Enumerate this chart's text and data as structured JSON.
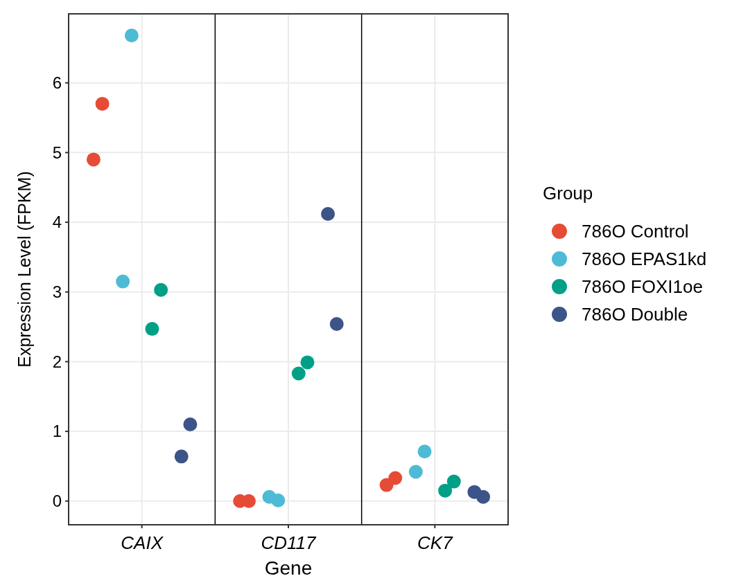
{
  "chart_data": {
    "type": "scatter",
    "xlabel": "Gene",
    "ylabel": "Expression Level (FPKM)",
    "legend_title": "Group",
    "categories": [
      "CAIX",
      "CD117",
      "CK7"
    ],
    "ylim": [
      -0.34,
      6.99
    ],
    "yticks": [
      0,
      1,
      2,
      3,
      4,
      5,
      6
    ],
    "grid": true,
    "legend": "right",
    "marker": "circle",
    "series": [
      {
        "name": "786O Control",
        "color": "#e64b35",
        "x": [
          "CAIX",
          "CAIX",
          "CD117",
          "CD117",
          "CK7",
          "CK7"
        ],
        "values": [
          4.9,
          5.7,
          0,
          0,
          0.23,
          0.33
        ]
      },
      {
        "name": "786O EPAS1kd",
        "color": "#4dbbd5",
        "x": [
          "CAIX",
          "CAIX",
          "CD117",
          "CD117",
          "CK7",
          "CK7"
        ],
        "values": [
          3.15,
          6.68,
          0.06,
          0.01,
          0.42,
          0.71
        ]
      },
      {
        "name": "786O FOXI1oe",
        "color": "#00a087",
        "x": [
          "CAIX",
          "CAIX",
          "CD117",
          "CD117",
          "CK7",
          "CK7"
        ],
        "values": [
          2.47,
          3.03,
          1.83,
          1.99,
          0.15,
          0.28
        ]
      },
      {
        "name": "786O Double",
        "color": "#3c5488",
        "x": [
          "CAIX",
          "CAIX",
          "CD117",
          "CD117",
          "CK7",
          "CK7"
        ],
        "values": [
          0.64,
          1.1,
          4.12,
          2.54,
          0.13,
          0.06
        ]
      }
    ]
  }
}
